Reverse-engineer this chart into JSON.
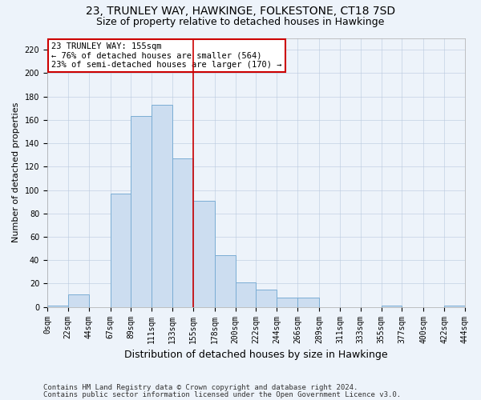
{
  "title_line1": "23, TRUNLEY WAY, HAWKINGE, FOLKESTONE, CT18 7SD",
  "title_line2": "Size of property relative to detached houses in Hawkinge",
  "xlabel": "Distribution of detached houses by size in Hawkinge",
  "ylabel": "Number of detached properties",
  "bar_edges": [
    0,
    22,
    44,
    67,
    89,
    111,
    133,
    155,
    178,
    200,
    222,
    244,
    266,
    289,
    311,
    333,
    355,
    377,
    400,
    422,
    444
  ],
  "bar_heights": [
    1,
    11,
    0,
    97,
    163,
    173,
    127,
    91,
    44,
    21,
    15,
    8,
    8,
    0,
    0,
    0,
    1,
    0,
    0,
    1
  ],
  "bar_facecolor": "#ccddf0",
  "bar_edgecolor": "#7aadd4",
  "vline_x": 155,
  "vline_color": "#cc0000",
  "annotation_text": "23 TRUNLEY WAY: 155sqm\n← 76% of detached houses are smaller (564)\n23% of semi-detached houses are larger (170) →",
  "annotation_box_color": "#ffffff",
  "annotation_box_edgecolor": "#cc0000",
  "ylim": [
    0,
    230
  ],
  "yticks": [
    0,
    20,
    40,
    60,
    80,
    100,
    120,
    140,
    160,
    180,
    200,
    220
  ],
  "footer_line1": "Contains HM Land Registry data © Crown copyright and database right 2024.",
  "footer_line2": "Contains public sector information licensed under the Open Government Licence v3.0.",
  "background_color": "#edf3fa",
  "plot_background": "#edf3fa",
  "title_fontsize": 10,
  "subtitle_fontsize": 9,
  "ylabel_fontsize": 8,
  "xlabel_fontsize": 9,
  "tick_fontsize": 7,
  "footer_fontsize": 6.5,
  "annotation_fontsize": 7.5
}
